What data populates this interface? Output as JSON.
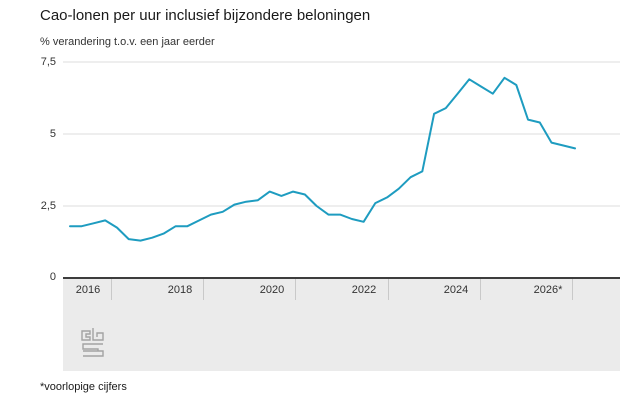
{
  "title": "Cao-lonen per uur inclusief bijzondere beloningen",
  "subtitle": "% verandering t.o.v. een jaar eerder",
  "footnote": "*voorlopige cijfers",
  "logo_name": "cbs-logo",
  "colors": {
    "line": "#1e9cc0",
    "axis": "#3d3d3d",
    "grid": "#dcdcdc",
    "band": "#ebebeb",
    "tick": "#c9c9c9",
    "text": "#1a1a1a"
  },
  "chart_data": {
    "type": "line",
    "title": "Cao-lonen per uur inclusief bijzondere beloningen",
    "ylabel": "% verandering t.o.v. een jaar eerder",
    "xlabel": "",
    "ylim": [
      0,
      7.5
    ],
    "y_ticks": [
      7.5,
      5,
      2.5,
      0
    ],
    "y_tick_labels": [
      "7,5",
      "5",
      "2,5",
      "0"
    ],
    "x_tick_labels": [
      "2016",
      "2018",
      "2020",
      "2022",
      "2024",
      "2026*"
    ],
    "x_start": "2016-Q1",
    "x_step": "quarter",
    "grid": "horizontal",
    "legend": "none",
    "footnote": "*voorlopige cijfers",
    "series": [
      {
        "name": "Cao-lonen per uur inclusief bijzondere beloningen (% j/j)",
        "values": [
          1.8,
          1.8,
          1.9,
          2.0,
          1.75,
          1.35,
          1.3,
          1.4,
          1.55,
          1.8,
          1.8,
          2.0,
          2.2,
          2.3,
          2.55,
          2.65,
          2.7,
          3.0,
          2.85,
          3.0,
          2.9,
          2.5,
          2.2,
          2.2,
          2.05,
          1.95,
          2.6,
          2.8,
          3.1,
          3.5,
          3.7,
          5.7,
          5.9,
          6.4,
          6.9,
          6.65,
          6.4,
          6.95,
          6.7,
          5.5,
          5.4,
          4.7,
          4.6,
          4.5
        ]
      }
    ]
  }
}
